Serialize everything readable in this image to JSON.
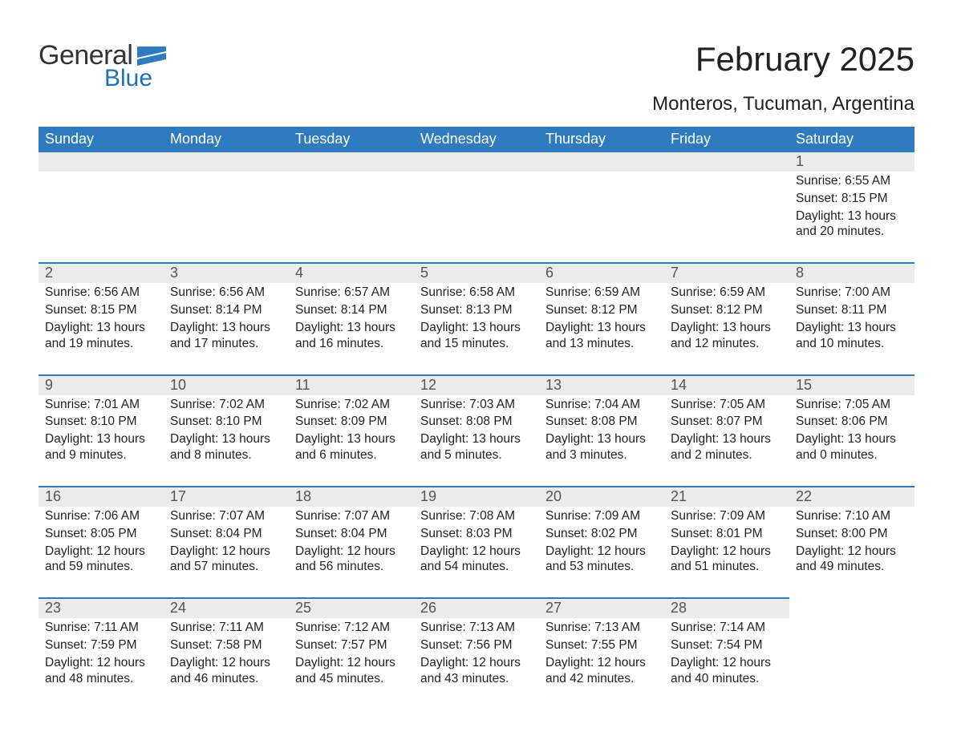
{
  "brand": {
    "name_part1": "General",
    "name_part2": "Blue",
    "text_color": "#333333",
    "accent_color": "#1f6fb2",
    "flag_color": "#2f7bbf"
  },
  "header": {
    "month_title": "February 2025",
    "location": "Monteros, Tucuman, Argentina",
    "title_fontsize": 42,
    "location_fontsize": 24
  },
  "colors": {
    "weekday_header_bg": "#2f7bbf",
    "weekday_header_text": "#ffffff",
    "day_strip_bg": "#ebebeb",
    "day_strip_border": "#2f7bbf",
    "body_text": "#222222",
    "background": "#ffffff"
  },
  "weekdays": [
    "Sunday",
    "Monday",
    "Tuesday",
    "Wednesday",
    "Thursday",
    "Friday",
    "Saturday"
  ],
  "weeks": [
    [
      {
        "empty": true
      },
      {
        "empty": true
      },
      {
        "empty": true
      },
      {
        "empty": true
      },
      {
        "empty": true
      },
      {
        "empty": true
      },
      {
        "day": "1",
        "sunrise": "Sunrise: 6:55 AM",
        "sunset": "Sunset: 8:15 PM",
        "daylight": "Daylight: 13 hours and 20 minutes."
      }
    ],
    [
      {
        "day": "2",
        "sunrise": "Sunrise: 6:56 AM",
        "sunset": "Sunset: 8:15 PM",
        "daylight": "Daylight: 13 hours and 19 minutes."
      },
      {
        "day": "3",
        "sunrise": "Sunrise: 6:56 AM",
        "sunset": "Sunset: 8:14 PM",
        "daylight": "Daylight: 13 hours and 17 minutes."
      },
      {
        "day": "4",
        "sunrise": "Sunrise: 6:57 AM",
        "sunset": "Sunset: 8:14 PM",
        "daylight": "Daylight: 13 hours and 16 minutes."
      },
      {
        "day": "5",
        "sunrise": "Sunrise: 6:58 AM",
        "sunset": "Sunset: 8:13 PM",
        "daylight": "Daylight: 13 hours and 15 minutes."
      },
      {
        "day": "6",
        "sunrise": "Sunrise: 6:59 AM",
        "sunset": "Sunset: 8:12 PM",
        "daylight": "Daylight: 13 hours and 13 minutes."
      },
      {
        "day": "7",
        "sunrise": "Sunrise: 6:59 AM",
        "sunset": "Sunset: 8:12 PM",
        "daylight": "Daylight: 13 hours and 12 minutes."
      },
      {
        "day": "8",
        "sunrise": "Sunrise: 7:00 AM",
        "sunset": "Sunset: 8:11 PM",
        "daylight": "Daylight: 13 hours and 10 minutes."
      }
    ],
    [
      {
        "day": "9",
        "sunrise": "Sunrise: 7:01 AM",
        "sunset": "Sunset: 8:10 PM",
        "daylight": "Daylight: 13 hours and 9 minutes."
      },
      {
        "day": "10",
        "sunrise": "Sunrise: 7:02 AM",
        "sunset": "Sunset: 8:10 PM",
        "daylight": "Daylight: 13 hours and 8 minutes."
      },
      {
        "day": "11",
        "sunrise": "Sunrise: 7:02 AM",
        "sunset": "Sunset: 8:09 PM",
        "daylight": "Daylight: 13 hours and 6 minutes."
      },
      {
        "day": "12",
        "sunrise": "Sunrise: 7:03 AM",
        "sunset": "Sunset: 8:08 PM",
        "daylight": "Daylight: 13 hours and 5 minutes."
      },
      {
        "day": "13",
        "sunrise": "Sunrise: 7:04 AM",
        "sunset": "Sunset: 8:08 PM",
        "daylight": "Daylight: 13 hours and 3 minutes."
      },
      {
        "day": "14",
        "sunrise": "Sunrise: 7:05 AM",
        "sunset": "Sunset: 8:07 PM",
        "daylight": "Daylight: 13 hours and 2 minutes."
      },
      {
        "day": "15",
        "sunrise": "Sunrise: 7:05 AM",
        "sunset": "Sunset: 8:06 PM",
        "daylight": "Daylight: 13 hours and 0 minutes."
      }
    ],
    [
      {
        "day": "16",
        "sunrise": "Sunrise: 7:06 AM",
        "sunset": "Sunset: 8:05 PM",
        "daylight": "Daylight: 12 hours and 59 minutes."
      },
      {
        "day": "17",
        "sunrise": "Sunrise: 7:07 AM",
        "sunset": "Sunset: 8:04 PM",
        "daylight": "Daylight: 12 hours and 57 minutes."
      },
      {
        "day": "18",
        "sunrise": "Sunrise: 7:07 AM",
        "sunset": "Sunset: 8:04 PM",
        "daylight": "Daylight: 12 hours and 56 minutes."
      },
      {
        "day": "19",
        "sunrise": "Sunrise: 7:08 AM",
        "sunset": "Sunset: 8:03 PM",
        "daylight": "Daylight: 12 hours and 54 minutes."
      },
      {
        "day": "20",
        "sunrise": "Sunrise: 7:09 AM",
        "sunset": "Sunset: 8:02 PM",
        "daylight": "Daylight: 12 hours and 53 minutes."
      },
      {
        "day": "21",
        "sunrise": "Sunrise: 7:09 AM",
        "sunset": "Sunset: 8:01 PM",
        "daylight": "Daylight: 12 hours and 51 minutes."
      },
      {
        "day": "22",
        "sunrise": "Sunrise: 7:10 AM",
        "sunset": "Sunset: 8:00 PM",
        "daylight": "Daylight: 12 hours and 49 minutes."
      }
    ],
    [
      {
        "day": "23",
        "sunrise": "Sunrise: 7:11 AM",
        "sunset": "Sunset: 7:59 PM",
        "daylight": "Daylight: 12 hours and 48 minutes."
      },
      {
        "day": "24",
        "sunrise": "Sunrise: 7:11 AM",
        "sunset": "Sunset: 7:58 PM",
        "daylight": "Daylight: 12 hours and 46 minutes."
      },
      {
        "day": "25",
        "sunrise": "Sunrise: 7:12 AM",
        "sunset": "Sunset: 7:57 PM",
        "daylight": "Daylight: 12 hours and 45 minutes."
      },
      {
        "day": "26",
        "sunrise": "Sunrise: 7:13 AM",
        "sunset": "Sunset: 7:56 PM",
        "daylight": "Daylight: 12 hours and 43 minutes."
      },
      {
        "day": "27",
        "sunrise": "Sunrise: 7:13 AM",
        "sunset": "Sunset: 7:55 PM",
        "daylight": "Daylight: 12 hours and 42 minutes."
      },
      {
        "day": "28",
        "sunrise": "Sunrise: 7:14 AM",
        "sunset": "Sunset: 7:54 PM",
        "daylight": "Daylight: 12 hours and 40 minutes."
      },
      {
        "empty": true,
        "blank": true
      }
    ]
  ]
}
